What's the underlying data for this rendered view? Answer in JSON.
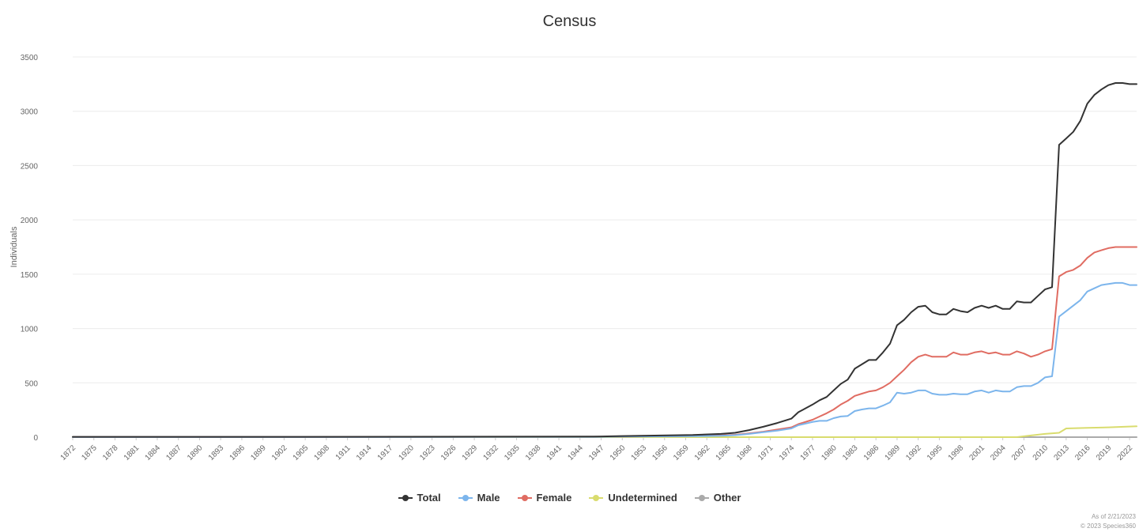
{
  "chart_data": {
    "type": "line",
    "title": "Census",
    "xlabel": "",
    "ylabel": "Individuals",
    "ylim": [
      0,
      3500
    ],
    "yticks": [
      "0",
      "500",
      "1000",
      "1500",
      "2000",
      "2500",
      "3000",
      "3500"
    ],
    "xticks": [
      "1872",
      "1875",
      "1878",
      "1881",
      "1884",
      "1887",
      "1890",
      "1893",
      "1896",
      "1899",
      "1902",
      "1905",
      "1908",
      "1911",
      "1914",
      "1917",
      "1920",
      "1923",
      "1926",
      "1929",
      "1932",
      "1935",
      "1938",
      "1941",
      "1944",
      "1947",
      "1950",
      "1953",
      "1956",
      "1959",
      "1962",
      "1965",
      "1968",
      "1971",
      "1974",
      "1977",
      "1980",
      "1983",
      "1986",
      "1989",
      "1992",
      "1995",
      "1998",
      "2001",
      "2004",
      "2007",
      "2010",
      "2013",
      "2016",
      "2019",
      "2022"
    ],
    "grid": true,
    "legend": "bottom",
    "series": [
      {
        "name": "Total",
        "color": "#333333",
        "x": [
          1872,
          1900,
          1946,
          1950,
          1960,
          1964,
          1966,
          1968,
          1970,
          1972,
          1974,
          1975,
          1977,
          1978,
          1979,
          1980,
          1981,
          1982,
          1983,
          1984,
          1985,
          1986,
          1987,
          1988,
          1989,
          1990,
          1991,
          1992,
          1993,
          1994,
          1995,
          1996,
          1997,
          1998,
          1999,
          2000,
          2001,
          2002,
          2003,
          2004,
          2005,
          2006,
          2007,
          2008,
          2009,
          2010,
          2011,
          2012,
          2013,
          2014,
          2015,
          2016,
          2017,
          2018,
          2019,
          2020,
          2021,
          2022,
          2023
        ],
        "y": [
          3,
          3,
          5,
          10,
          20,
          30,
          40,
          65,
          95,
          130,
          170,
          230,
          300,
          340,
          370,
          430,
          490,
          530,
          630,
          670,
          710,
          710,
          780,
          860,
          1030,
          1080,
          1150,
          1200,
          1210,
          1150,
          1130,
          1130,
          1180,
          1160,
          1150,
          1190,
          1210,
          1190,
          1210,
          1180,
          1180,
          1250,
          1240,
          1240,
          1300,
          1360,
          1380,
          2690,
          2750,
          2810,
          2910,
          3070,
          3150,
          3200,
          3240,
          3260,
          3260,
          3250,
          3250
        ]
      },
      {
        "name": "Male",
        "color": "#7cb5ec",
        "x": [
          1872,
          1900,
          1946,
          1950,
          1960,
          1964,
          1966,
          1968,
          1970,
          1972,
          1974,
          1975,
          1977,
          1978,
          1979,
          1980,
          1981,
          1982,
          1983,
          1984,
          1985,
          1986,
          1987,
          1988,
          1989,
          1990,
          1991,
          1992,
          1993,
          1994,
          1995,
          1996,
          1997,
          1998,
          1999,
          2000,
          2001,
          2002,
          2003,
          2004,
          2005,
          2006,
          2007,
          2008,
          2009,
          2010,
          2011,
          2012,
          2013,
          2014,
          2015,
          2016,
          2017,
          2018,
          2019,
          2020,
          2021,
          2022,
          2023
        ],
        "y": [
          1,
          1,
          2,
          5,
          9,
          13,
          18,
          30,
          45,
          60,
          80,
          110,
          140,
          150,
          150,
          175,
          190,
          195,
          240,
          255,
          265,
          265,
          290,
          320,
          410,
          400,
          410,
          430,
          430,
          400,
          390,
          390,
          400,
          395,
          395,
          420,
          430,
          410,
          430,
          420,
          420,
          460,
          470,
          470,
          500,
          550,
          560,
          1110,
          1160,
          1210,
          1260,
          1340,
          1370,
          1400,
          1410,
          1420,
          1420,
          1400,
          1400
        ]
      },
      {
        "name": "Female",
        "color": "#e06c62",
        "x": [
          1872,
          1900,
          1946,
          1950,
          1960,
          1964,
          1966,
          1968,
          1970,
          1972,
          1974,
          1975,
          1977,
          1978,
          1979,
          1980,
          1981,
          1982,
          1983,
          1984,
          1985,
          1986,
          1987,
          1988,
          1989,
          1990,
          1991,
          1992,
          1993,
          1994,
          1995,
          1996,
          1997,
          1998,
          1999,
          2000,
          2001,
          2002,
          2003,
          2004,
          2005,
          2006,
          2007,
          2008,
          2009,
          2010,
          2011,
          2012,
          2013,
          2014,
          2015,
          2016,
          2017,
          2018,
          2019,
          2020,
          2021,
          2022,
          2023
        ],
        "y": [
          1,
          1,
          3,
          5,
          11,
          17,
          22,
          35,
          50,
          70,
          90,
          120,
          160,
          190,
          220,
          255,
          300,
          335,
          380,
          400,
          420,
          430,
          460,
          500,
          560,
          620,
          690,
          740,
          760,
          740,
          740,
          740,
          780,
          760,
          760,
          780,
          790,
          770,
          780,
          760,
          760,
          790,
          770,
          740,
          760,
          790,
          810,
          1480,
          1520,
          1540,
          1580,
          1650,
          1700,
          1720,
          1740,
          1750,
          1750,
          1750,
          1750
        ]
      },
      {
        "name": "Undetermined",
        "color": "#d9dc6e",
        "x": [
          1872,
          2006,
          2008,
          2010,
          2012,
          2013,
          2016,
          2019,
          2023
        ],
        "y": [
          0,
          0,
          15,
          30,
          40,
          80,
          85,
          90,
          100
        ]
      },
      {
        "name": "Other",
        "color": "#aaaaaa",
        "x": [
          1872,
          2023
        ],
        "y": [
          0,
          0
        ]
      }
    ]
  },
  "credits": {
    "line1": "As of 2/21/2023",
    "line2": "© 2023 Species360"
  }
}
